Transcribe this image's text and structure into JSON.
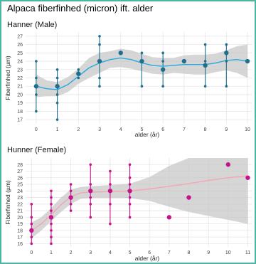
{
  "title": "Alpaca fiberfinhed (micron) ift. alder",
  "chart_data": [
    {
      "type": "scatter",
      "title": "Hanner (Male)",
      "xlabel": "alder (år)",
      "ylabel": "Fiberfinhed (µm)",
      "xlim": [
        -0.5,
        10.2
      ],
      "ylim": [
        16.5,
        27.5
      ],
      "xticks": [
        0,
        1,
        2,
        3,
        4,
        5,
        6,
        7,
        8,
        9,
        10
      ],
      "yticks": [
        17,
        18,
        19,
        20,
        21,
        22,
        23,
        24,
        25,
        26,
        27
      ],
      "grid": true,
      "colors": {
        "points": "#1f6e8c",
        "smooth": "#29a9e0",
        "band": "#c4c4c4"
      },
      "points": [
        {
          "x": 0,
          "y": 18
        },
        {
          "x": 0,
          "y": 20
        },
        {
          "x": 0,
          "y": 21
        },
        {
          "x": 0,
          "y": 22
        },
        {
          "x": 0,
          "y": 24
        },
        {
          "x": 1,
          "y": 17
        },
        {
          "x": 1,
          "y": 19
        },
        {
          "x": 1,
          "y": 20
        },
        {
          "x": 1,
          "y": 21
        },
        {
          "x": 1,
          "y": 22
        },
        {
          "x": 1,
          "y": 23
        },
        {
          "x": 2,
          "y": 22
        },
        {
          "x": 2,
          "y": 23
        },
        {
          "x": 3,
          "y": 21
        },
        {
          "x": 3,
          "y": 22
        },
        {
          "x": 3,
          "y": 24
        },
        {
          "x": 3,
          "y": 26
        },
        {
          "x": 3,
          "y": 27
        },
        {
          "x": 5,
          "y": 21
        },
        {
          "x": 5,
          "y": 24
        },
        {
          "x": 5,
          "y": 25
        },
        {
          "x": 6,
          "y": 21
        },
        {
          "x": 6,
          "y": 24
        },
        {
          "x": 6,
          "y": 25
        },
        {
          "x": 8,
          "y": 21
        },
        {
          "x": 8,
          "y": 24
        },
        {
          "x": 8,
          "y": 26
        },
        {
          "x": 9,
          "y": 21
        },
        {
          "x": 9,
          "y": 24
        },
        {
          "x": 9,
          "y": 26
        }
      ],
      "means": [
        {
          "x": 0,
          "y": 21
        },
        {
          "x": 1,
          "y": 21
        },
        {
          "x": 2,
          "y": 22.5
        },
        {
          "x": 3,
          "y": 24
        },
        {
          "x": 4,
          "y": 25
        },
        {
          "x": 5,
          "y": 24
        },
        {
          "x": 6,
          "y": 23
        },
        {
          "x": 7,
          "y": 24
        },
        {
          "x": 8,
          "y": 23.5
        },
        {
          "x": 9,
          "y": 25
        },
        {
          "x": 10,
          "y": 24
        }
      ],
      "ranges": [
        {
          "x": 0,
          "min": 18,
          "max": 24
        },
        {
          "x": 1,
          "min": 17,
          "max": 23
        },
        {
          "x": 2,
          "min": 22,
          "max": 23
        },
        {
          "x": 3,
          "min": 21,
          "max": 27
        },
        {
          "x": 5,
          "min": 21,
          "max": 25
        },
        {
          "x": 6,
          "min": 21,
          "max": 25
        },
        {
          "x": 8,
          "min": 21,
          "max": 26
        },
        {
          "x": 9,
          "min": 21,
          "max": 26
        }
      ],
      "smooth": [
        {
          "x": 0,
          "y": 21.0
        },
        {
          "x": 0.5,
          "y": 20.7
        },
        {
          "x": 1,
          "y": 20.6
        },
        {
          "x": 1.5,
          "y": 21.2
        },
        {
          "x": 2,
          "y": 22.2
        },
        {
          "x": 2.5,
          "y": 23.2
        },
        {
          "x": 3,
          "y": 23.8
        },
        {
          "x": 3.5,
          "y": 24.2
        },
        {
          "x": 4,
          "y": 24.4
        },
        {
          "x": 4.5,
          "y": 24.2
        },
        {
          "x": 5,
          "y": 23.8
        },
        {
          "x": 5.5,
          "y": 23.5
        },
        {
          "x": 6,
          "y": 23.4
        },
        {
          "x": 6.5,
          "y": 23.5
        },
        {
          "x": 7,
          "y": 23.6
        },
        {
          "x": 7.5,
          "y": 23.6
        },
        {
          "x": 8,
          "y": 23.6
        },
        {
          "x": 8.5,
          "y": 23.8
        },
        {
          "x": 9,
          "y": 24.1
        },
        {
          "x": 9.5,
          "y": 24.2
        },
        {
          "x": 10,
          "y": 24.0
        }
      ],
      "band": [
        {
          "x": 0,
          "lo": 19.7,
          "hi": 22.4
        },
        {
          "x": 0.5,
          "lo": 19.8,
          "hi": 21.7
        },
        {
          "x": 1,
          "lo": 19.8,
          "hi": 21.5
        },
        {
          "x": 1.5,
          "lo": 20.3,
          "hi": 22.1
        },
        {
          "x": 2,
          "lo": 21.3,
          "hi": 23.1
        },
        {
          "x": 2.5,
          "lo": 22.0,
          "hi": 24.4
        },
        {
          "x": 3,
          "lo": 22.6,
          "hi": 25.0
        },
        {
          "x": 3.5,
          "lo": 23.2,
          "hi": 25.2
        },
        {
          "x": 4,
          "lo": 23.3,
          "hi": 25.5
        },
        {
          "x": 4.5,
          "lo": 23.1,
          "hi": 25.3
        },
        {
          "x": 5,
          "lo": 22.8,
          "hi": 24.9
        },
        {
          "x": 5.5,
          "lo": 22.5,
          "hi": 24.5
        },
        {
          "x": 6,
          "lo": 22.4,
          "hi": 24.4
        },
        {
          "x": 6.5,
          "lo": 22.6,
          "hi": 24.4
        },
        {
          "x": 7,
          "lo": 22.5,
          "hi": 24.7
        },
        {
          "x": 7.5,
          "lo": 22.4,
          "hi": 24.8
        },
        {
          "x": 8,
          "lo": 22.4,
          "hi": 24.8
        },
        {
          "x": 8.5,
          "lo": 22.7,
          "hi": 24.9
        },
        {
          "x": 9,
          "lo": 22.9,
          "hi": 25.3
        },
        {
          "x": 9.5,
          "lo": 22.6,
          "hi": 25.8
        },
        {
          "x": 10,
          "lo": 22.0,
          "hi": 26.0
        }
      ]
    },
    {
      "type": "scatter",
      "title": "Hunner (Female)",
      "xlabel": "alder (år)",
      "ylabel": "Fiberfinhed (µm)",
      "xlim": [
        -0.3,
        11.2
      ],
      "ylim": [
        15.5,
        29
      ],
      "xticks": [
        0,
        1,
        2,
        3,
        4,
        5,
        6,
        7,
        8,
        9,
        10,
        11
      ],
      "yticks": [
        16,
        17,
        18,
        19,
        20,
        21,
        22,
        23,
        24,
        25,
        26,
        27,
        28
      ],
      "grid": true,
      "colors": {
        "points": "#c4148c",
        "smooth": "#f4a6b4",
        "band": "#c4c4c4"
      },
      "points": [
        {
          "x": 0,
          "y": 16
        },
        {
          "x": 0,
          "y": 17
        },
        {
          "x": 0,
          "y": 18
        },
        {
          "x": 0,
          "y": 19
        },
        {
          "x": 0,
          "y": 20
        },
        {
          "x": 0,
          "y": 22
        },
        {
          "x": 1,
          "y": 16
        },
        {
          "x": 1,
          "y": 17
        },
        {
          "x": 1,
          "y": 18
        },
        {
          "x": 1,
          "y": 19
        },
        {
          "x": 1,
          "y": 20
        },
        {
          "x": 1,
          "y": 21
        },
        {
          "x": 1,
          "y": 22
        },
        {
          "x": 1,
          "y": 23
        },
        {
          "x": 1,
          "y": 24
        },
        {
          "x": 2,
          "y": 21
        },
        {
          "x": 2,
          "y": 22
        },
        {
          "x": 2,
          "y": 24
        },
        {
          "x": 2,
          "y": 25
        },
        {
          "x": 3,
          "y": 20
        },
        {
          "x": 3,
          "y": 22
        },
        {
          "x": 3,
          "y": 23
        },
        {
          "x": 3,
          "y": 25
        },
        {
          "x": 3,
          "y": 28
        },
        {
          "x": 4,
          "y": 19
        },
        {
          "x": 4,
          "y": 22
        },
        {
          "x": 4,
          "y": 24
        },
        {
          "x": 4,
          "y": 25
        },
        {
          "x": 4,
          "y": 27
        },
        {
          "x": 5,
          "y": 20
        },
        {
          "x": 5,
          "y": 22
        },
        {
          "x": 5,
          "y": 23
        },
        {
          "x": 5,
          "y": 25
        },
        {
          "x": 5,
          "y": 26
        },
        {
          "x": 5,
          "y": 28
        }
      ],
      "means": [
        {
          "x": 0,
          "y": 18
        },
        {
          "x": 1,
          "y": 20
        },
        {
          "x": 2,
          "y": 23
        },
        {
          "x": 3,
          "y": 24
        },
        {
          "x": 4,
          "y": 24
        },
        {
          "x": 5,
          "y": 24
        },
        {
          "x": 7,
          "y": 20
        },
        {
          "x": 8,
          "y": 23
        },
        {
          "x": 10,
          "y": 28
        },
        {
          "x": 11,
          "y": 26
        }
      ],
      "ranges": [
        {
          "x": 0,
          "min": 16,
          "max": 22
        },
        {
          "x": 1,
          "min": 16,
          "max": 24
        },
        {
          "x": 2,
          "min": 21,
          "max": 25
        },
        {
          "x": 3,
          "min": 20,
          "max": 28
        },
        {
          "x": 4,
          "min": 19,
          "max": 27
        },
        {
          "x": 5,
          "min": 20,
          "max": 28
        }
      ],
      "smooth": [
        {
          "x": 0,
          "y": 18.0
        },
        {
          "x": 0.5,
          "y": 19.0
        },
        {
          "x": 1,
          "y": 20.4
        },
        {
          "x": 1.5,
          "y": 21.9
        },
        {
          "x": 2,
          "y": 23.1
        },
        {
          "x": 2.5,
          "y": 23.7
        },
        {
          "x": 3,
          "y": 23.8
        },
        {
          "x": 4,
          "y": 23.9
        },
        {
          "x": 5,
          "y": 24.0
        },
        {
          "x": 6,
          "y": 24.3
        },
        {
          "x": 7,
          "y": 24.7
        },
        {
          "x": 8,
          "y": 25.1
        },
        {
          "x": 9,
          "y": 25.6
        },
        {
          "x": 10,
          "y": 26.0
        },
        {
          "x": 11,
          "y": 26.3
        }
      ],
      "band": [
        {
          "x": 0,
          "lo": 16.8,
          "hi": 19.2
        },
        {
          "x": 0.5,
          "lo": 18.0,
          "hi": 20.0
        },
        {
          "x": 1,
          "lo": 19.4,
          "hi": 21.4
        },
        {
          "x": 1.5,
          "lo": 20.8,
          "hi": 23.0
        },
        {
          "x": 2,
          "lo": 22.0,
          "hi": 24.2
        },
        {
          "x": 2.5,
          "lo": 22.8,
          "hi": 24.6
        },
        {
          "x": 3,
          "lo": 22.9,
          "hi": 24.7
        },
        {
          "x": 4,
          "lo": 22.9,
          "hi": 24.9
        },
        {
          "x": 5,
          "lo": 22.9,
          "hi": 25.1
        },
        {
          "x": 6,
          "lo": 22.5,
          "hi": 26.1
        },
        {
          "x": 7,
          "lo": 21.6,
          "hi": 27.8
        },
        {
          "x": 8,
          "lo": 20.8,
          "hi": 29.0
        },
        {
          "x": 9,
          "lo": 20.2,
          "hi": 29.0
        },
        {
          "x": 10,
          "lo": 19.6,
          "hi": 29.0
        },
        {
          "x": 11,
          "lo": 19.0,
          "hi": 29.0
        }
      ]
    }
  ]
}
